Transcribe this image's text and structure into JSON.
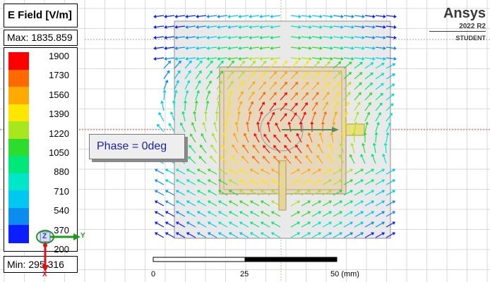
{
  "legend": {
    "title": "E Field [V/m]",
    "max_label": "Max: 1835.859",
    "min_label": "Min: 295.316",
    "ticks": [
      "1900",
      "1730",
      "1560",
      "1390",
      "1220",
      "1050",
      "880",
      "710",
      "540",
      "370",
      "200"
    ],
    "colors": [
      "#ff0000",
      "#ff6a00",
      "#ffaa00",
      "#ffe600",
      "#a8e61e",
      "#2edc2e",
      "#00e87a",
      "#00e6c8",
      "#00c8f0",
      "#0a8cf0",
      "#0a1eff"
    ]
  },
  "phase_label": "Phase = 0deg",
  "logo": {
    "name": "Ansys",
    "version": "2022 R2",
    "edition": "STUDENT"
  },
  "triad": {
    "x": "X",
    "y": "Y",
    "z": "Z"
  },
  "ruler": {
    "labels": [
      "0",
      "25",
      "50 (mm)"
    ]
  }
}
